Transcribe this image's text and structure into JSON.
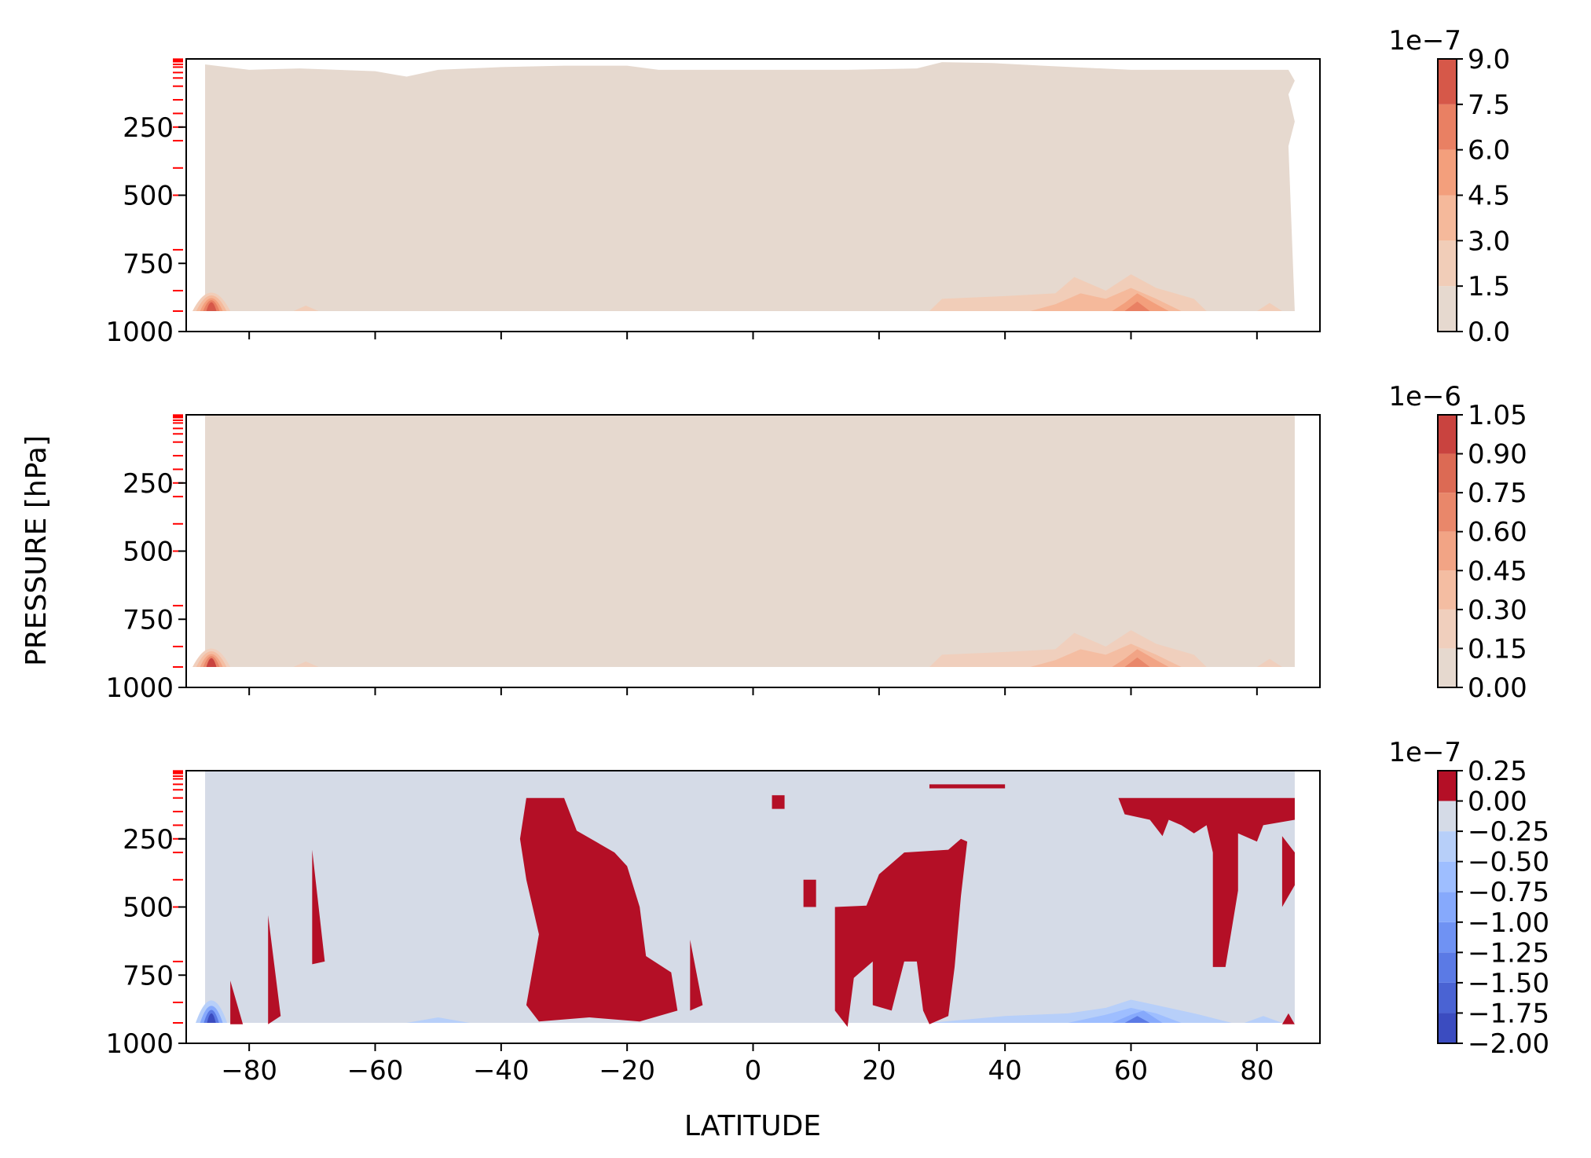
{
  "figure": {
    "ylabel": "PRESSURE [hPa]",
    "xlabel": "LATITUDE"
  },
  "chart_data": [
    {
      "type": "heatmap",
      "panel": "top",
      "x_range": [
        -90,
        90
      ],
      "y_range": [
        1000,
        0
      ],
      "y_inverted": true,
      "x_ticks": [
        -80,
        -60,
        -40,
        -20,
        0,
        20,
        40,
        60,
        80
      ],
      "x_tick_labels_shown": false,
      "y_ticks": [
        250,
        500,
        750,
        1000
      ],
      "y_tick_labels": [
        "250",
        "500",
        "750",
        "1000"
      ],
      "pressure_levels_marked": [
        1,
        5,
        10,
        20,
        30,
        50,
        70,
        100,
        150,
        200,
        250,
        300,
        400,
        500,
        700,
        850,
        925
      ],
      "level_marker_color": "#ff0000",
      "colorbar": {
        "multiplier": "1e−7",
        "levels": [
          0.0,
          1.5,
          3.0,
          4.5,
          6.0,
          7.5,
          9.0
        ],
        "tick_labels": [
          "0.0",
          "1.5",
          "3.0",
          "4.5",
          "6.0",
          "7.5",
          "9.0"
        ],
        "colors": [
          "#e6d9cf",
          "#f1cdb8",
          "#f5b99b",
          "#f39f7c",
          "#e98063",
          "#d65849"
        ]
      },
      "background_fill": "#e6d9cf",
      "hotspots": [
        {
          "lat": -86,
          "p": 900,
          "value": 9.0
        },
        {
          "lat": 61,
          "p": 900,
          "value": 6.0
        },
        {
          "lat": 52,
          "p": 880,
          "value": 3.0
        }
      ]
    },
    {
      "type": "heatmap",
      "panel": "middle",
      "x_range": [
        -90,
        90
      ],
      "y_range": [
        1000,
        0
      ],
      "y_inverted": true,
      "x_ticks": [
        -80,
        -60,
        -40,
        -20,
        0,
        20,
        40,
        60,
        80
      ],
      "x_tick_labels_shown": false,
      "y_ticks": [
        250,
        500,
        750,
        1000
      ],
      "y_tick_labels": [
        "250",
        "500",
        "750",
        "1000"
      ],
      "pressure_levels_marked": [
        1,
        5,
        10,
        20,
        30,
        50,
        70,
        100,
        150,
        200,
        250,
        300,
        400,
        500,
        700,
        850,
        925
      ],
      "level_marker_color": "#ff0000",
      "colorbar": {
        "multiplier": "1e−6",
        "levels": [
          0.0,
          0.15,
          0.3,
          0.45,
          0.6,
          0.75,
          0.9,
          1.05
        ],
        "tick_labels": [
          "0.00",
          "0.15",
          "0.30",
          "0.45",
          "0.60",
          "0.75",
          "0.90",
          "1.05"
        ],
        "colors": [
          "#e6d9cf",
          "#f0cfbd",
          "#f4bda2",
          "#f2a485",
          "#e9876a",
          "#dc6a54",
          "#c9433f"
        ]
      },
      "background_fill": "#e6d9cf",
      "hotspots": [
        {
          "lat": -86,
          "p": 900,
          "value": 1.05
        },
        {
          "lat": 61,
          "p": 900,
          "value": 0.75
        },
        {
          "lat": 52,
          "p": 880,
          "value": 0.3
        }
      ]
    },
    {
      "type": "heatmap",
      "panel": "bottom",
      "x_range": [
        -90,
        90
      ],
      "y_range": [
        1000,
        0
      ],
      "y_inverted": true,
      "x_ticks": [
        -80,
        -60,
        -40,
        -20,
        0,
        20,
        40,
        60,
        80
      ],
      "x_tick_labels": [
        "−80",
        "−60",
        "−40",
        "−20",
        "0",
        "20",
        "40",
        "60",
        "80"
      ],
      "y_ticks": [
        250,
        500,
        750,
        1000
      ],
      "y_tick_labels": [
        "250",
        "500",
        "750",
        "1000"
      ],
      "pressure_levels_marked": [
        1,
        5,
        10,
        20,
        30,
        50,
        70,
        100,
        150,
        200,
        250,
        300,
        400,
        500,
        700,
        850,
        925
      ],
      "level_marker_color": "#ff0000",
      "colorbar": {
        "multiplier": "1e−7",
        "levels": [
          -2.0,
          -1.75,
          -1.5,
          -1.25,
          -1.0,
          -0.75,
          -0.5,
          -0.25,
          0.0,
          0.25
        ],
        "tick_labels": [
          "−2.00",
          "−1.75",
          "−1.50",
          "−1.25",
          "−1.00",
          "−0.75",
          "−0.50",
          "−0.25",
          "0.00",
          "0.25"
        ],
        "colors": [
          "#3b4cc0",
          "#4a63d3",
          "#5b7ae5",
          "#6f92f3",
          "#86a9fc",
          "#9ebeff",
          "#b7cff9",
          "#d5dbe7",
          "#b40f26"
        ]
      },
      "background_fill": "#d5dbe7",
      "positive_fill": "#b40f26",
      "positive_regions_lat_p": [
        [
          [
            -36,
            100
          ],
          [
            -30,
            100
          ],
          [
            -28,
            220
          ],
          [
            -22,
            300
          ],
          [
            -20,
            350
          ],
          [
            -18,
            500
          ],
          [
            -17,
            680
          ],
          [
            -13,
            740
          ],
          [
            -12,
            880
          ],
          [
            -18,
            920
          ],
          [
            -26,
            905
          ],
          [
            -34,
            920
          ],
          [
            -36,
            860
          ],
          [
            -34,
            600
          ],
          [
            -36,
            400
          ],
          [
            -37,
            250
          ]
        ],
        [
          [
            13,
            500
          ],
          [
            18,
            495
          ],
          [
            20,
            380
          ],
          [
            24,
            300
          ],
          [
            31,
            290
          ],
          [
            33,
            250
          ],
          [
            34,
            260
          ],
          [
            33,
            460
          ],
          [
            32,
            720
          ],
          [
            31,
            900
          ],
          [
            28,
            930
          ],
          [
            27,
            880
          ],
          [
            26,
            700
          ],
          [
            24,
            700
          ],
          [
            22,
            880
          ],
          [
            19,
            860
          ],
          [
            19,
            700
          ],
          [
            16,
            760
          ],
          [
            15,
            940
          ],
          [
            13,
            880
          ]
        ],
        [
          [
            58,
            100
          ],
          [
            86,
            100
          ],
          [
            86,
            180
          ],
          [
            81,
            200
          ],
          [
            80,
            260
          ],
          [
            77,
            230
          ],
          [
            77,
            440
          ],
          [
            75,
            720
          ],
          [
            73,
            720
          ],
          [
            73,
            300
          ],
          [
            72,
            200
          ],
          [
            70,
            230
          ],
          [
            68,
            200
          ],
          [
            66,
            180
          ],
          [
            65,
            240
          ],
          [
            63,
            180
          ],
          [
            59,
            160
          ]
        ],
        [
          [
            28,
            50
          ],
          [
            40,
            50
          ],
          [
            40,
            65
          ],
          [
            28,
            65
          ]
        ],
        [
          [
            8,
            400
          ],
          [
            10,
            400
          ],
          [
            10,
            500
          ],
          [
            8,
            500
          ]
        ],
        [
          [
            3,
            90
          ],
          [
            5,
            90
          ],
          [
            5,
            140
          ],
          [
            3,
            140
          ]
        ],
        [
          [
            -70,
            290
          ],
          [
            -68,
            700
          ],
          [
            -70,
            710
          ]
        ],
        [
          [
            -77,
            530
          ],
          [
            -75,
            900
          ],
          [
            -77,
            930
          ]
        ],
        [
          [
            -83,
            770
          ],
          [
            -81,
            930
          ],
          [
            -83,
            930
          ]
        ],
        [
          [
            -10,
            620
          ],
          [
            -8,
            860
          ],
          [
            -10,
            880
          ]
        ],
        [
          [
            84,
            240
          ],
          [
            86,
            300
          ],
          [
            86,
            420
          ],
          [
            84,
            500
          ],
          [
            84,
            360
          ]
        ],
        [
          [
            85,
            890
          ],
          [
            86,
            930
          ],
          [
            84,
            930
          ]
        ]
      ],
      "negative_hotspots": [
        {
          "lat": -86,
          "p": 900,
          "value": -2.0
        },
        {
          "lat": 61,
          "p": 900,
          "value": -1.75
        },
        {
          "lat": 52,
          "p": 880,
          "value": -0.5
        }
      ]
    }
  ]
}
